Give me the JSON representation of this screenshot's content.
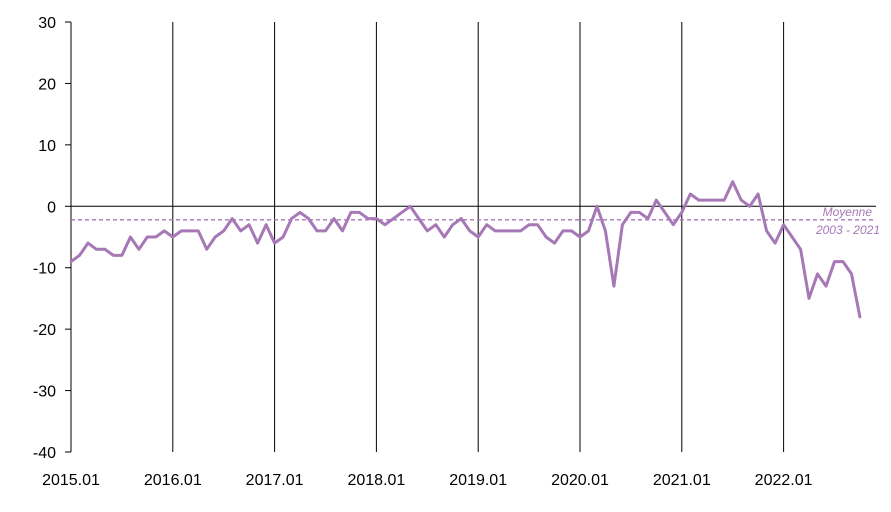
{
  "chart_data": {
    "type": "line",
    "title": "",
    "xlabel": "",
    "ylabel": "",
    "ylim": [
      -40,
      30
    ],
    "y_ticks": [
      30,
      20,
      10,
      0,
      -10,
      -20,
      -30,
      -40
    ],
    "x_tick_labels": [
      "2015.01",
      "2016.01",
      "2017.01",
      "2018.01",
      "2019.01",
      "2020.01",
      "2021.01",
      "2022.01"
    ],
    "start": "2015.01",
    "vertical_gridlines_at_january": true,
    "horizontal_zero_line": true,
    "series": [
      {
        "color": "#a678b6",
        "values": [
          -9,
          -8,
          -6,
          -7,
          -7,
          -8,
          -8,
          -5,
          -7,
          -5,
          -5,
          -4,
          -5,
          -4,
          -4,
          -4,
          -7,
          -5,
          -4,
          -2,
          -4,
          -3,
          -6,
          -3,
          -6,
          -5,
          -2,
          -1,
          -2,
          -4,
          -4,
          -2,
          -4,
          -1,
          -1,
          -2,
          -2,
          -3,
          -2,
          -1,
          0,
          -2,
          -4,
          -3,
          -5,
          -3,
          -2,
          -4,
          -5,
          -3,
          -4,
          -4,
          -4,
          -4,
          -3,
          -3,
          -5,
          -6,
          -4,
          -4,
          -5,
          -4,
          0,
          -4,
          -13,
          -3,
          -1,
          -1,
          -2,
          1,
          -1,
          -3,
          -1,
          2,
          1,
          1,
          1,
          1,
          4,
          1,
          0,
          2,
          -4,
          -6,
          -3,
          -5,
          -7,
          -15,
          -11,
          -13,
          -9,
          -9,
          -11,
          -18
        ]
      }
    ],
    "reference_line": {
      "value": -2.2,
      "label_line1": "Moyenne",
      "label_line2": "2003 - 2021",
      "color": "#a678b6",
      "style": "dashed"
    }
  }
}
